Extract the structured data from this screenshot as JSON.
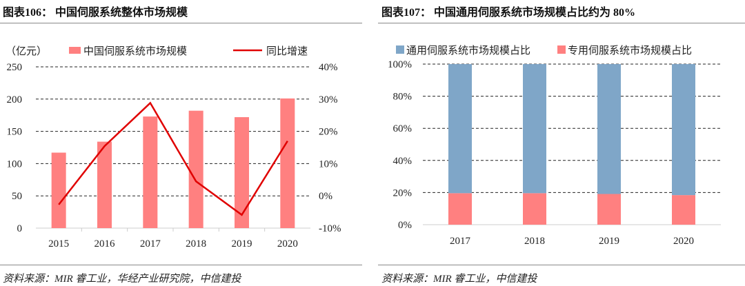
{
  "left": {
    "title": "图表106： 中国伺服系统整体市场规模",
    "source": "资料来源：MIR 睿工业，华经产业研究院，中信建投"
  },
  "right": {
    "title": "图表107： 中国通用伺服系统市场规模占比约为 80%",
    "source": "资料来源：MIR 睿工业，中信建投"
  },
  "chart_data": [
    {
      "type": "bar+line",
      "unit_label": "（亿元）",
      "categories": [
        "2015",
        "2016",
        "2017",
        "2018",
        "2019",
        "2020"
      ],
      "series": [
        {
          "name": "中国伺服系统市场规模",
          "type": "bar",
          "axis": "left",
          "color": "#ff8080",
          "values": [
            117,
            134,
            173,
            182,
            172,
            201
          ]
        },
        {
          "name": "同比增速",
          "type": "line",
          "axis": "right",
          "color": "#e00000",
          "values": [
            -2.7,
            15.4,
            28.8,
            4.5,
            -5.9,
            17.0
          ]
        }
      ],
      "ylim": [
        0,
        250
      ],
      "yticks": [
        "0",
        "50",
        "100",
        "150",
        "200",
        "250"
      ],
      "y2lim": [
        -10,
        40
      ],
      "y2ticks": [
        "-10%",
        "0%",
        "10%",
        "20%",
        "30%",
        "40%"
      ],
      "grid": true,
      "legend": "top"
    },
    {
      "type": "stacked-bar",
      "categories": [
        "2017",
        "2018",
        "2019",
        "2020"
      ],
      "series": [
        {
          "name": "通用伺服系统市场规模占比",
          "color": "#7fa6c8",
          "values": [
            80.4,
            80.4,
            80.9,
            81.6
          ]
        },
        {
          "name": "专用伺服系统市场规模占比",
          "color": "#ff8080",
          "values": [
            19.6,
            19.6,
            19.1,
            18.4
          ]
        }
      ],
      "ylim": [
        0,
        100
      ],
      "yticks": [
        "0%",
        "20%",
        "40%",
        "60%",
        "80%",
        "100%"
      ],
      "grid": true,
      "legend": "top"
    }
  ]
}
